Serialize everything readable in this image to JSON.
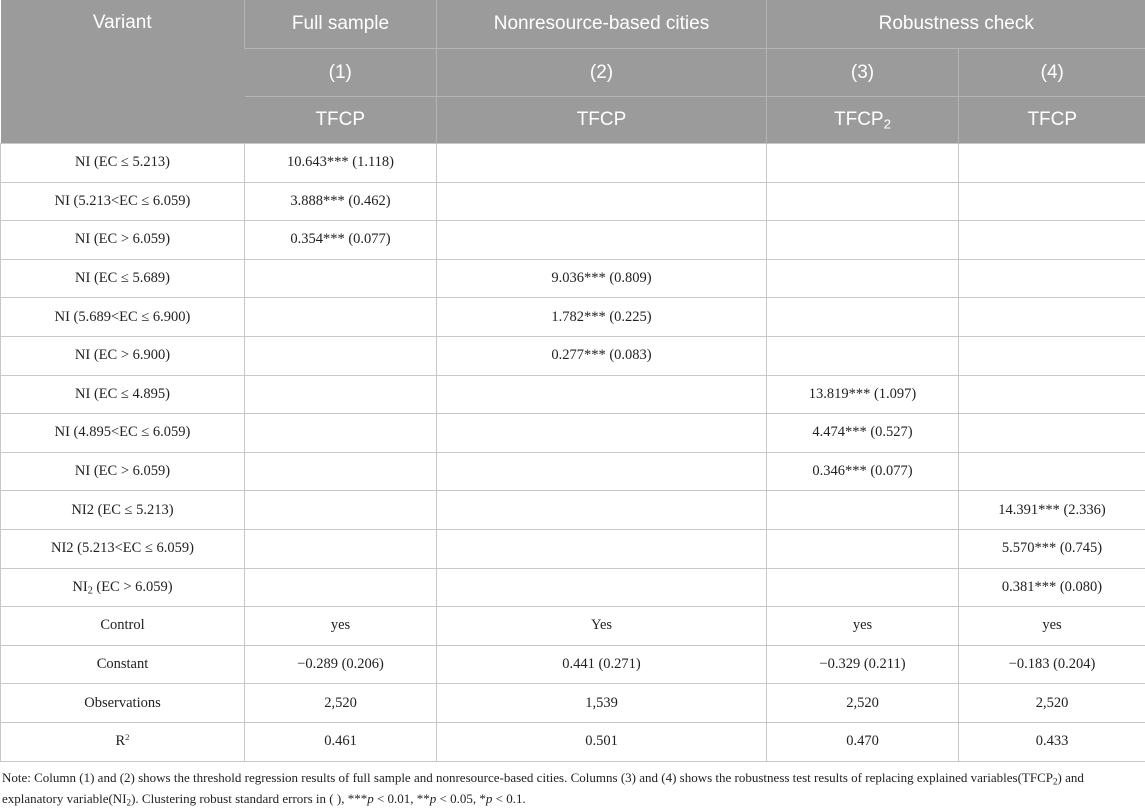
{
  "header": {
    "variant": "Variant",
    "full_sample": "Full sample",
    "nonresource": "Nonresource-based cities",
    "robustness": "Robustness check",
    "col_numbers": [
      "(1)",
      "(2)",
      "(3)",
      "(4)"
    ],
    "dep_vars": {
      "c1": "TFCP",
      "c2": "TFCP",
      "c3_base": "TFCP",
      "c3_sub": "2",
      "c4": "TFCP"
    }
  },
  "rows": [
    {
      "label": "NI (EC ≤ 5.213)",
      "c1": "10.643*** (1.118)",
      "c2": "",
      "c3": "",
      "c4": ""
    },
    {
      "label": "NI (5.213<EC ≤ 6.059)",
      "c1": "3.888*** (0.462)",
      "c2": "",
      "c3": "",
      "c4": ""
    },
    {
      "label": "NI (EC > 6.059)",
      "c1": "0.354*** (0.077)",
      "c2": "",
      "c3": "",
      "c4": ""
    },
    {
      "label": "NI (EC ≤ 5.689)",
      "c1": "",
      "c2": "9.036*** (0.809)",
      "c3": "",
      "c4": ""
    },
    {
      "label": "NI (5.689<EC ≤ 6.900)",
      "c1": "",
      "c2": "1.782*** (0.225)",
      "c3": "",
      "c4": ""
    },
    {
      "label": "NI (EC > 6.900)",
      "c1": "",
      "c2": "0.277*** (0.083)",
      "c3": "",
      "c4": ""
    },
    {
      "label": "NI (EC ≤ 4.895)",
      "c1": "",
      "c2": "",
      "c3": "13.819*** (1.097)",
      "c4": ""
    },
    {
      "label": "NI (4.895<EC ≤ 6.059)",
      "c1": "",
      "c2": "",
      "c3": "4.474*** (0.527)",
      "c4": ""
    },
    {
      "label": "NI (EC > 6.059)",
      "c1": "",
      "c2": "",
      "c3": "0.346*** (0.077)",
      "c4": ""
    },
    {
      "label": "NI2 (EC ≤ 5.213)",
      "c1": "",
      "c2": "",
      "c3": "",
      "c4": "14.391*** (2.336)"
    },
    {
      "label": "NI2 (5.213<EC ≤ 6.059)",
      "c1": "",
      "c2": "",
      "c3": "",
      "c4": "5.570*** (0.745)"
    },
    {
      "label_base": "NI",
      "label_sub": "2",
      "label_rest": " (EC > 6.059)",
      "c1": "",
      "c2": "",
      "c3": "",
      "c4": "0.381*** (0.080)"
    },
    {
      "label": "Control",
      "c1": "yes",
      "c2": "Yes",
      "c3": "yes",
      "c4": "yes"
    },
    {
      "label": "Constant",
      "c1": "−0.289 (0.206)",
      "c2": "0.441 (0.271)",
      "c3": "−0.329 (0.211)",
      "c4": "−0.183 (0.204)"
    },
    {
      "label": "Observations",
      "c1": "2,520",
      "c2": "1,539",
      "c3": "2,520",
      "c4": "2,520"
    },
    {
      "label_base": "R",
      "label_sup": "2",
      "c1": "0.461",
      "c2": "0.501",
      "c3": "0.470",
      "c4": "0.433"
    }
  ],
  "note": {
    "part1": "Note: Column (1) and (2) shows the threshold regression results of full sample and nonresource-based cities. Columns (3) and (4) shows the robustness test results of replacing explained variables(TFCP",
    "sub1": "2",
    "part2": ") and explanatory variable(NI",
    "sub2": "2",
    "part3": "). Clustering robust standard errors in ( ), ***",
    "p1": "p",
    "part4": " < 0.01, **",
    "p2": "p",
    "part5": " < 0.05, *",
    "p3": "p",
    "part6": " < 0.1."
  }
}
